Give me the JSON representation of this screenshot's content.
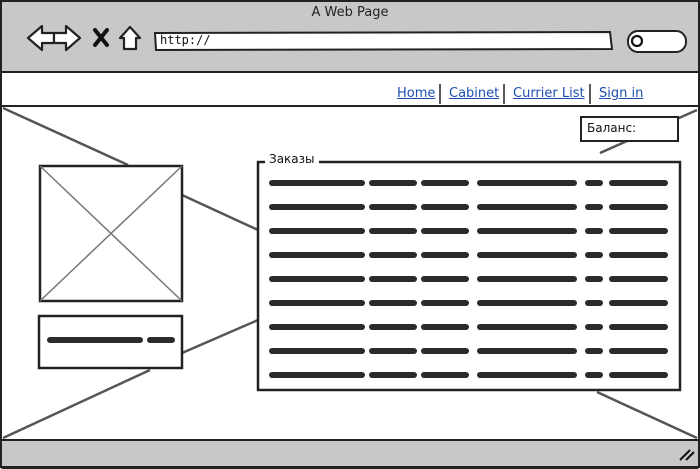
{
  "browser": {
    "window_title": "A Web Page",
    "url_value": "http://",
    "icons": [
      "back-arrow-icon",
      "forward-arrow-icon",
      "close-x-icon",
      "home-icon",
      "search-icon",
      "resize-grip-icon"
    ]
  },
  "nav": {
    "items": [
      {
        "label": "Home"
      },
      {
        "label": "Cabinet"
      },
      {
        "label": "Currier List"
      },
      {
        "label": "Sign in"
      }
    ]
  },
  "balance": {
    "label": "Баланс:"
  },
  "orders": {
    "legend": "Заказы",
    "row_count": 9,
    "column_count": 6
  },
  "colors": {
    "chrome_bg": "#c8c8c8",
    "stroke": "#222222",
    "link": "#1d4fb0",
    "scribble": "#2b2b2b"
  }
}
